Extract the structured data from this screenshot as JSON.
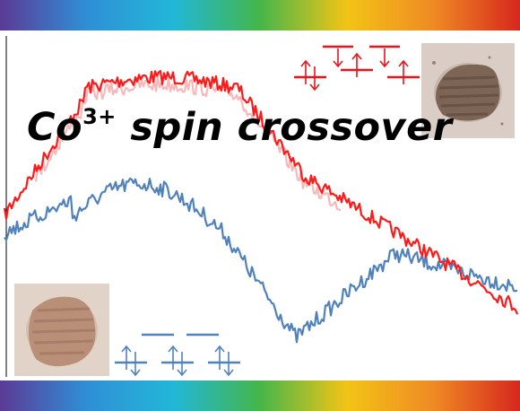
{
  "title": {
    "main": "Co",
    "superscript": "3+",
    "rest": " spin crossover"
  },
  "colors": {
    "high_spin_trace": "#ff1a1a",
    "high_spin_trace_faded": "#f6b8b8",
    "low_spin_trace": "#4f81bd",
    "orbital_high_spin": "#e8141a",
    "orbital_low_spin": "#4f81bd",
    "rainbow": [
      "#5b3a96",
      "#2f8fd6",
      "#22b7d8",
      "#45b649",
      "#f2c416",
      "#f08a24",
      "#d6271e"
    ]
  },
  "icons": {
    "spin_up": "up-arrow-icon",
    "spin_down": "down-arrow-icon"
  },
  "diagrams": {
    "high_spin": {
      "t2g_electrons": [
        2,
        1,
        1
      ],
      "eg_electrons": [
        1,
        1
      ]
    },
    "low_spin": {
      "t2g_electrons": [
        2,
        2,
        2
      ],
      "eg_electrons": [
        0,
        0
      ]
    }
  }
}
